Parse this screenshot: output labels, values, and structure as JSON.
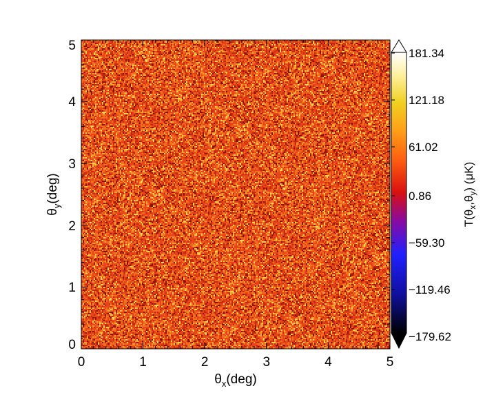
{
  "chart_data": {
    "type": "heatmap",
    "title": "",
    "x_range": [
      0,
      5
    ],
    "y_range": [
      0,
      5
    ],
    "x_ticks": [
      "0",
      "1",
      "2",
      "3",
      "4",
      "5"
    ],
    "y_ticks": [
      "0",
      "1",
      "2",
      "3",
      "4",
      "5"
    ],
    "xlabel_main": "θ",
    "xlabel_sub": "x",
    "xlabel_rest": "(deg)",
    "ylabel_main": "θ",
    "ylabel_sub": "y",
    "ylabel_rest": "(deg)",
    "grid": false,
    "colorbar": {
      "range": [
        -179.62,
        181.34
      ],
      "tick_labels": [
        "181.34",
        "121.18",
        "61.02",
        "0.86",
        "−59.30",
        "−119.46",
        "−179.62"
      ],
      "label_prefix": "T(θ",
      "label_sub1": "x",
      "label_mid": ",θ",
      "label_sub2": "y",
      "label_suffix": ")  (μK)",
      "palette": [
        {
          "v": 0.0,
          "c": "#000000"
        },
        {
          "v": 0.14,
          "c": "#1010a0"
        },
        {
          "v": 0.28,
          "c": "#2020ff"
        },
        {
          "v": 0.4,
          "c": "#8a0aa0"
        },
        {
          "v": 0.5,
          "c": "#d81010"
        },
        {
          "v": 0.62,
          "c": "#ff6010"
        },
        {
          "v": 0.72,
          "c": "#ff9e18"
        },
        {
          "v": 0.82,
          "c": "#f0d020"
        },
        {
          "v": 0.92,
          "c": "#fff0a0"
        },
        {
          "v": 1.0,
          "c": "#ffffff"
        }
      ]
    },
    "map_dominant_colors": [
      "#e8441a",
      "#f07020",
      "#c42a10",
      "#f5a030",
      "#8c1208",
      "#ffd050"
    ]
  }
}
